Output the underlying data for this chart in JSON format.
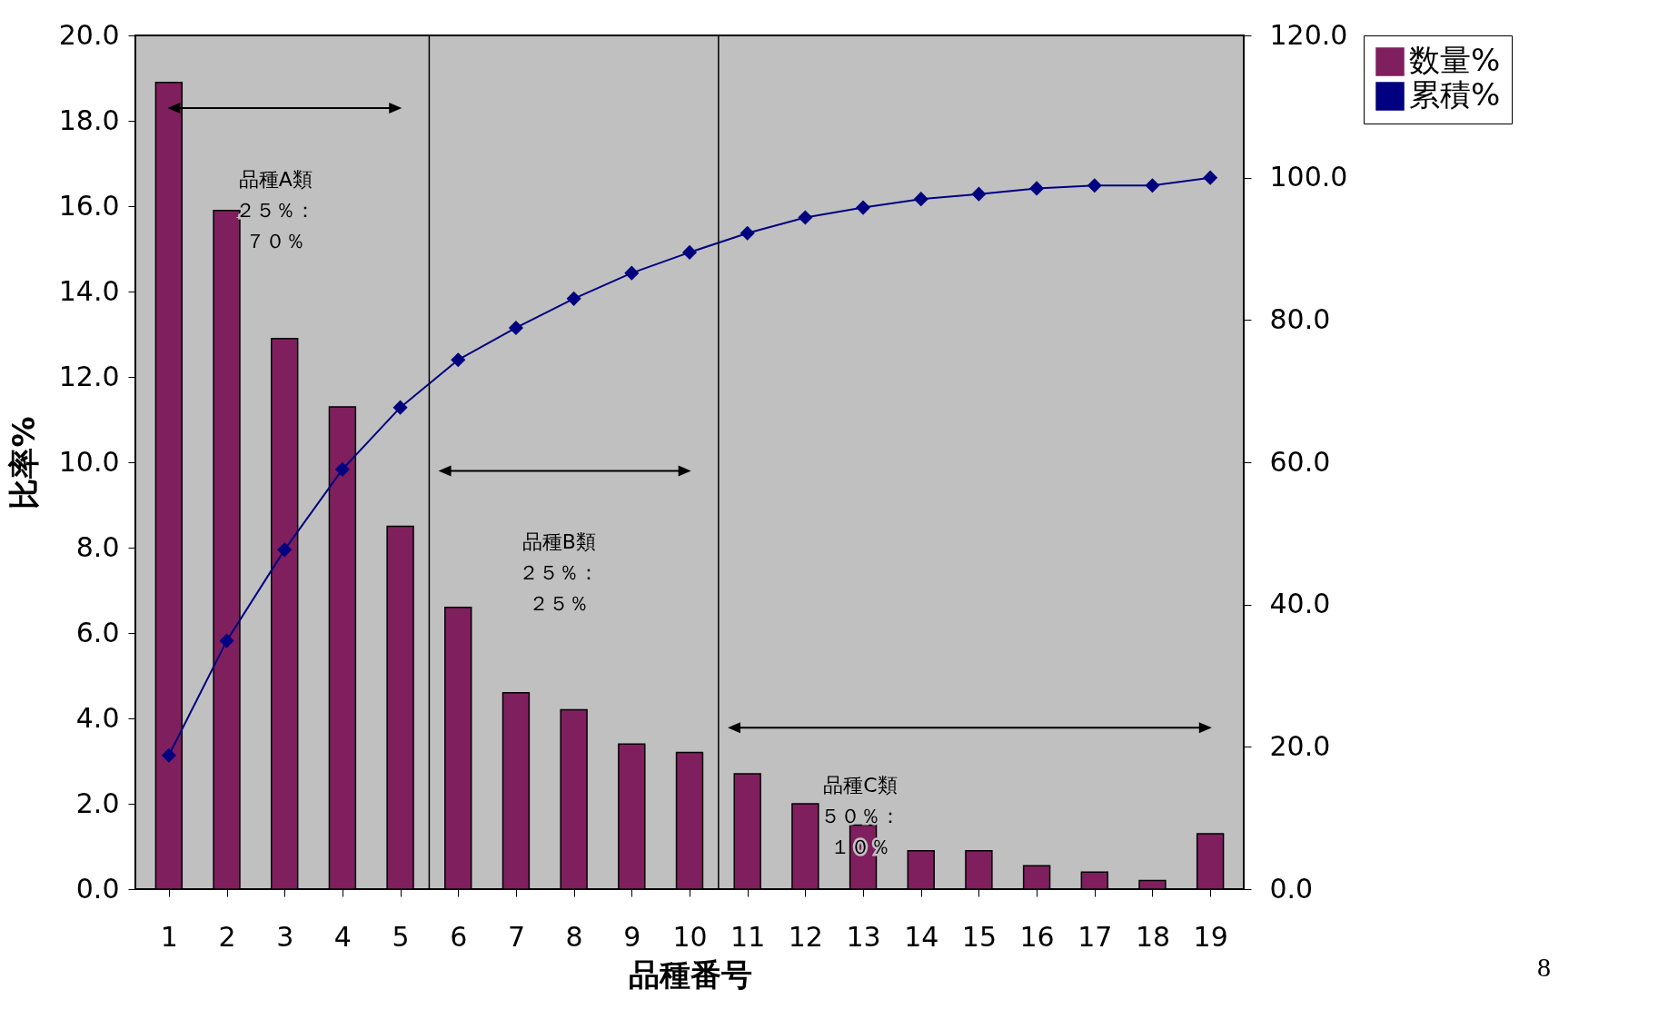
{
  "chart_data": {
    "type": "bar",
    "xlabel": "品種番号",
    "ylabel": "比率%",
    "x": [
      1,
      2,
      3,
      4,
      5,
      6,
      7,
      8,
      9,
      10,
      11,
      12,
      13,
      14,
      15,
      16,
      17,
      18,
      19
    ],
    "xlim": [
      0.5,
      19.5
    ],
    "xticks": [
      1,
      2,
      3,
      4,
      5,
      6,
      7,
      8,
      9,
      10,
      11,
      12,
      13,
      14,
      15,
      16,
      17,
      18,
      19
    ],
    "ylim": [
      0,
      20
    ],
    "yticks": [
      {
        "value": 0,
        "label": "0.0"
      },
      {
        "value": 2,
        "label": "2.0"
      },
      {
        "value": 4,
        "label": "4.0"
      },
      {
        "value": 6,
        "label": "6.0"
      },
      {
        "value": 8,
        "label": "8.0"
      },
      {
        "value": 10,
        "label": "10.0"
      },
      {
        "value": 12,
        "label": "12.0"
      },
      {
        "value": 14,
        "label": "14.0"
      },
      {
        "value": 16,
        "label": "16.0"
      },
      {
        "value": 18,
        "label": "18.0"
      },
      {
        "value": 20,
        "label": "20.0"
      }
    ],
    "y2lim": [
      0,
      120
    ],
    "y2ticks": [
      {
        "value": 0,
        "label": "0.0"
      },
      {
        "value": 20,
        "label": "20.0"
      },
      {
        "value": 40,
        "label": "40.0"
      },
      {
        "value": 60,
        "label": "60.0"
      },
      {
        "value": 80,
        "label": "80.0"
      },
      {
        "value": 100,
        "label": "100.0"
      },
      {
        "value": 120,
        "label": "120.0"
      }
    ],
    "series": [
      {
        "name": "数量%",
        "color": "#801f5e",
        "values": [
          18.9,
          15.9,
          12.9,
          11.3,
          8.5,
          6.6,
          4.6,
          4.2,
          3.4,
          3.2,
          2.7,
          2.0,
          1.5,
          0.9,
          0.9,
          0.55,
          0.4,
          0.2,
          1.3
        ]
      },
      {
        "name": "累積%",
        "type": "line",
        "axis": "y2",
        "color": "#000080",
        "marker": "diamond",
        "values": [
          18.8,
          34.9,
          47.7,
          59.0,
          67.7,
          74.4,
          78.9,
          83.0,
          86.6,
          89.5,
          92.2,
          94.4,
          95.8,
          97.0,
          97.7,
          98.5,
          98.9,
          98.9,
          100
        ]
      }
    ],
    "ref_lines": [
      {
        "axis": "x",
        "value": 5.5,
        "color": "#000000"
      },
      {
        "axis": "x",
        "value": 10.5,
        "color": "#000000"
      }
    ],
    "annotations": [
      "品種A類",
      "２５％：",
      "７０％",
      "品種B類",
      "２５％：",
      "２５％",
      "品種C類",
      "５０％：",
      "１０％",
      "8"
    ],
    "grid": false,
    "legend": "right"
  }
}
